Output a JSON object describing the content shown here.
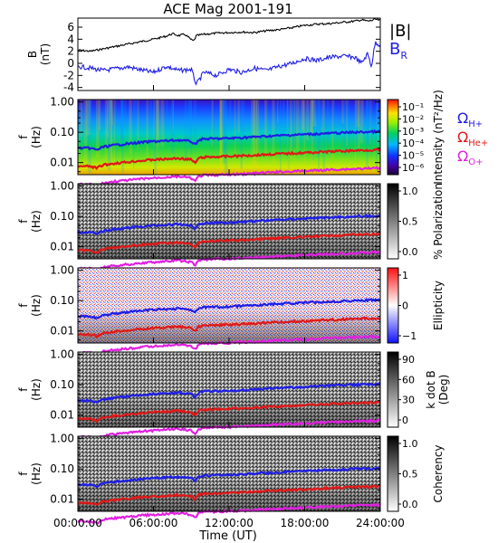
{
  "title": "ACE Mag 2001-191",
  "chart_data": [
    {
      "type": "line",
      "panel": "field",
      "ylabel_line1": "B",
      "ylabel_line2": "(nT)",
      "ylim": [
        -4.5,
        7.5
      ],
      "yticks": [
        -4,
        -2,
        0,
        2,
        4,
        6
      ],
      "legend": [
        {
          "label": "|B|",
          "color": "#000000"
        },
        {
          "label": "B",
          "sub": "R",
          "color": "#1e1ee6"
        }
      ],
      "series": [
        {
          "name": "|B|",
          "color": "#000000",
          "x": [
            0,
            1,
            2,
            3,
            4,
            5,
            6,
            7,
            7.5,
            8,
            8.5,
            9,
            9.2,
            9.4,
            10,
            11,
            12,
            13,
            14,
            15,
            16,
            17,
            18,
            19,
            20,
            21,
            22,
            22.5,
            23,
            23.3,
            23.6,
            24
          ],
          "values": [
            2.2,
            2.0,
            2.4,
            2.8,
            3.2,
            3.6,
            4.0,
            4.5,
            4.9,
            4.6,
            4.8,
            3.9,
            3.7,
            4.6,
            4.8,
            5.0,
            5.1,
            5.2,
            5.1,
            5.4,
            5.6,
            5.9,
            6.3,
            6.5,
            6.6,
            6.8,
            7.0,
            7.2,
            7.0,
            7.1,
            7.3,
            7.1
          ]
        },
        {
          "name": "B_R",
          "color": "#1e1ee6",
          "x": [
            0,
            1,
            2,
            3,
            4,
            5,
            6,
            7,
            8,
            9,
            9.4,
            10,
            11,
            12,
            13,
            14,
            15,
            16,
            17,
            18,
            19,
            20,
            21,
            22,
            22.5,
            23,
            23.3,
            23.6,
            24
          ],
          "values": [
            -0.5,
            -0.8,
            -1.2,
            -0.9,
            -0.6,
            -1.1,
            -1.5,
            -0.5,
            -1.2,
            -1.0,
            -3.5,
            -1.5,
            -2.0,
            -1.0,
            -1.5,
            -0.8,
            -1.2,
            -0.5,
            0.0,
            0.8,
            0.5,
            1.0,
            1.2,
            1.0,
            0.0,
            1.6,
            -0.5,
            3.5,
            3.0
          ]
        }
      ]
    },
    {
      "type": "heatmap",
      "panel": "intensity",
      "ylabel_line1": "f",
      "ylabel_line2": "(Hz)",
      "colorbar_label": "Intensity (nT²/Hz)",
      "colorbar_ticks": [
        "10⁻¹",
        "10⁻²",
        "10⁻³",
        "10⁻⁴",
        "10⁻⁵",
        "10⁻⁶"
      ],
      "colorbar_scale": "rainbow"
    },
    {
      "type": "heatmap",
      "panel": "polarization",
      "ylabel_line1": "f",
      "ylabel_line2": "(Hz)",
      "colorbar_label": "% Polarization",
      "colorbar_ticks": [
        "1.0",
        "0.5",
        "0.0"
      ],
      "colorbar_scale": "grayscale"
    },
    {
      "type": "heatmap",
      "panel": "ellipticity",
      "ylabel_line1": "f",
      "ylabel_line2": "(Hz)",
      "colorbar_label": "Ellipticity",
      "colorbar_ticks": [
        "1",
        "0",
        "−1"
      ],
      "colorbar_scale": "red-white-blue"
    },
    {
      "type": "heatmap",
      "panel": "kdotb",
      "ylabel_line1": "f",
      "ylabel_line2": "(Hz)",
      "colorbar_label_line1": "k dot B",
      "colorbar_label_line2": "(Deg)",
      "colorbar_ticks": [
        "90",
        "60",
        "30",
        "0"
      ],
      "colorbar_scale": "grayscale"
    },
    {
      "type": "heatmap",
      "panel": "coherency",
      "ylabel_line1": "f",
      "ylabel_line2": "(Hz)",
      "colorbar_label": "Coherency",
      "colorbar_ticks": [
        "1.0",
        "0.5",
        "0.0"
      ],
      "colorbar_scale": "grayscale"
    }
  ],
  "frequency_axis": {
    "scale": "log",
    "ylim": [
      0.004,
      1.2
    ],
    "tick_labels": [
      "1.00",
      "0.10",
      "0.01"
    ],
    "tick_values": [
      1.0,
      0.1,
      0.01
    ]
  },
  "time_axis": {
    "xlabel": "Time (UT)",
    "xlim": [
      0,
      24
    ],
    "tick_labels": [
      "00:00:00",
      "06:00:00",
      "12:00:00",
      "18:00:00",
      "24:00:00"
    ],
    "tick_values": [
      0,
      6,
      12,
      18,
      24
    ]
  },
  "gyrofrequency_lines": {
    "legend": [
      {
        "label": "Ω",
        "sub": "H+",
        "color": "#1e1ee6"
      },
      {
        "label": "Ω",
        "sub": "He+",
        "color": "#e01818"
      },
      {
        "label": "Ω",
        "sub": "O+",
        "color": "#e020e0"
      }
    ],
    "units": "Hz",
    "series": [
      {
        "name": "H+",
        "color": "#1e1ee6",
        "x": [
          0,
          1,
          1.5,
          2,
          3,
          4,
          5,
          6,
          7,
          8,
          9,
          9.3,
          9.6,
          10,
          12,
          14,
          16,
          18,
          20,
          22,
          24
        ],
        "values": [
          0.03,
          0.03,
          0.026,
          0.033,
          0.038,
          0.042,
          0.046,
          0.05,
          0.052,
          0.055,
          0.05,
          0.038,
          0.056,
          0.06,
          0.063,
          0.07,
          0.078,
          0.085,
          0.092,
          0.1,
          0.105
        ]
      },
      {
        "name": "He+",
        "color": "#e01818",
        "x": [
          0,
          1,
          1.5,
          2,
          3,
          4,
          5,
          6,
          7,
          8,
          9,
          9.3,
          9.6,
          10,
          12,
          14,
          16,
          18,
          20,
          22,
          24
        ],
        "values": [
          0.0075,
          0.0075,
          0.0065,
          0.0083,
          0.0095,
          0.0105,
          0.0115,
          0.0125,
          0.013,
          0.0138,
          0.0125,
          0.0095,
          0.014,
          0.015,
          0.016,
          0.0175,
          0.0195,
          0.021,
          0.023,
          0.025,
          0.0265
        ]
      },
      {
        "name": "O+",
        "color": "#e020e0",
        "x": [
          0,
          1,
          1.5,
          2,
          3,
          4,
          5,
          6,
          7,
          8,
          9,
          9.3,
          9.6,
          10,
          12,
          14,
          16,
          18,
          20,
          22,
          24
        ],
        "values": [
          0.0019,
          0.0019,
          0.0016,
          0.0021,
          0.0024,
          0.0026,
          0.0029,
          0.0031,
          0.0033,
          0.0035,
          0.0031,
          0.0024,
          0.0035,
          0.0038,
          0.004,
          0.0044,
          0.0049,
          0.0053,
          0.0058,
          0.0062,
          0.0066
        ]
      }
    ]
  }
}
